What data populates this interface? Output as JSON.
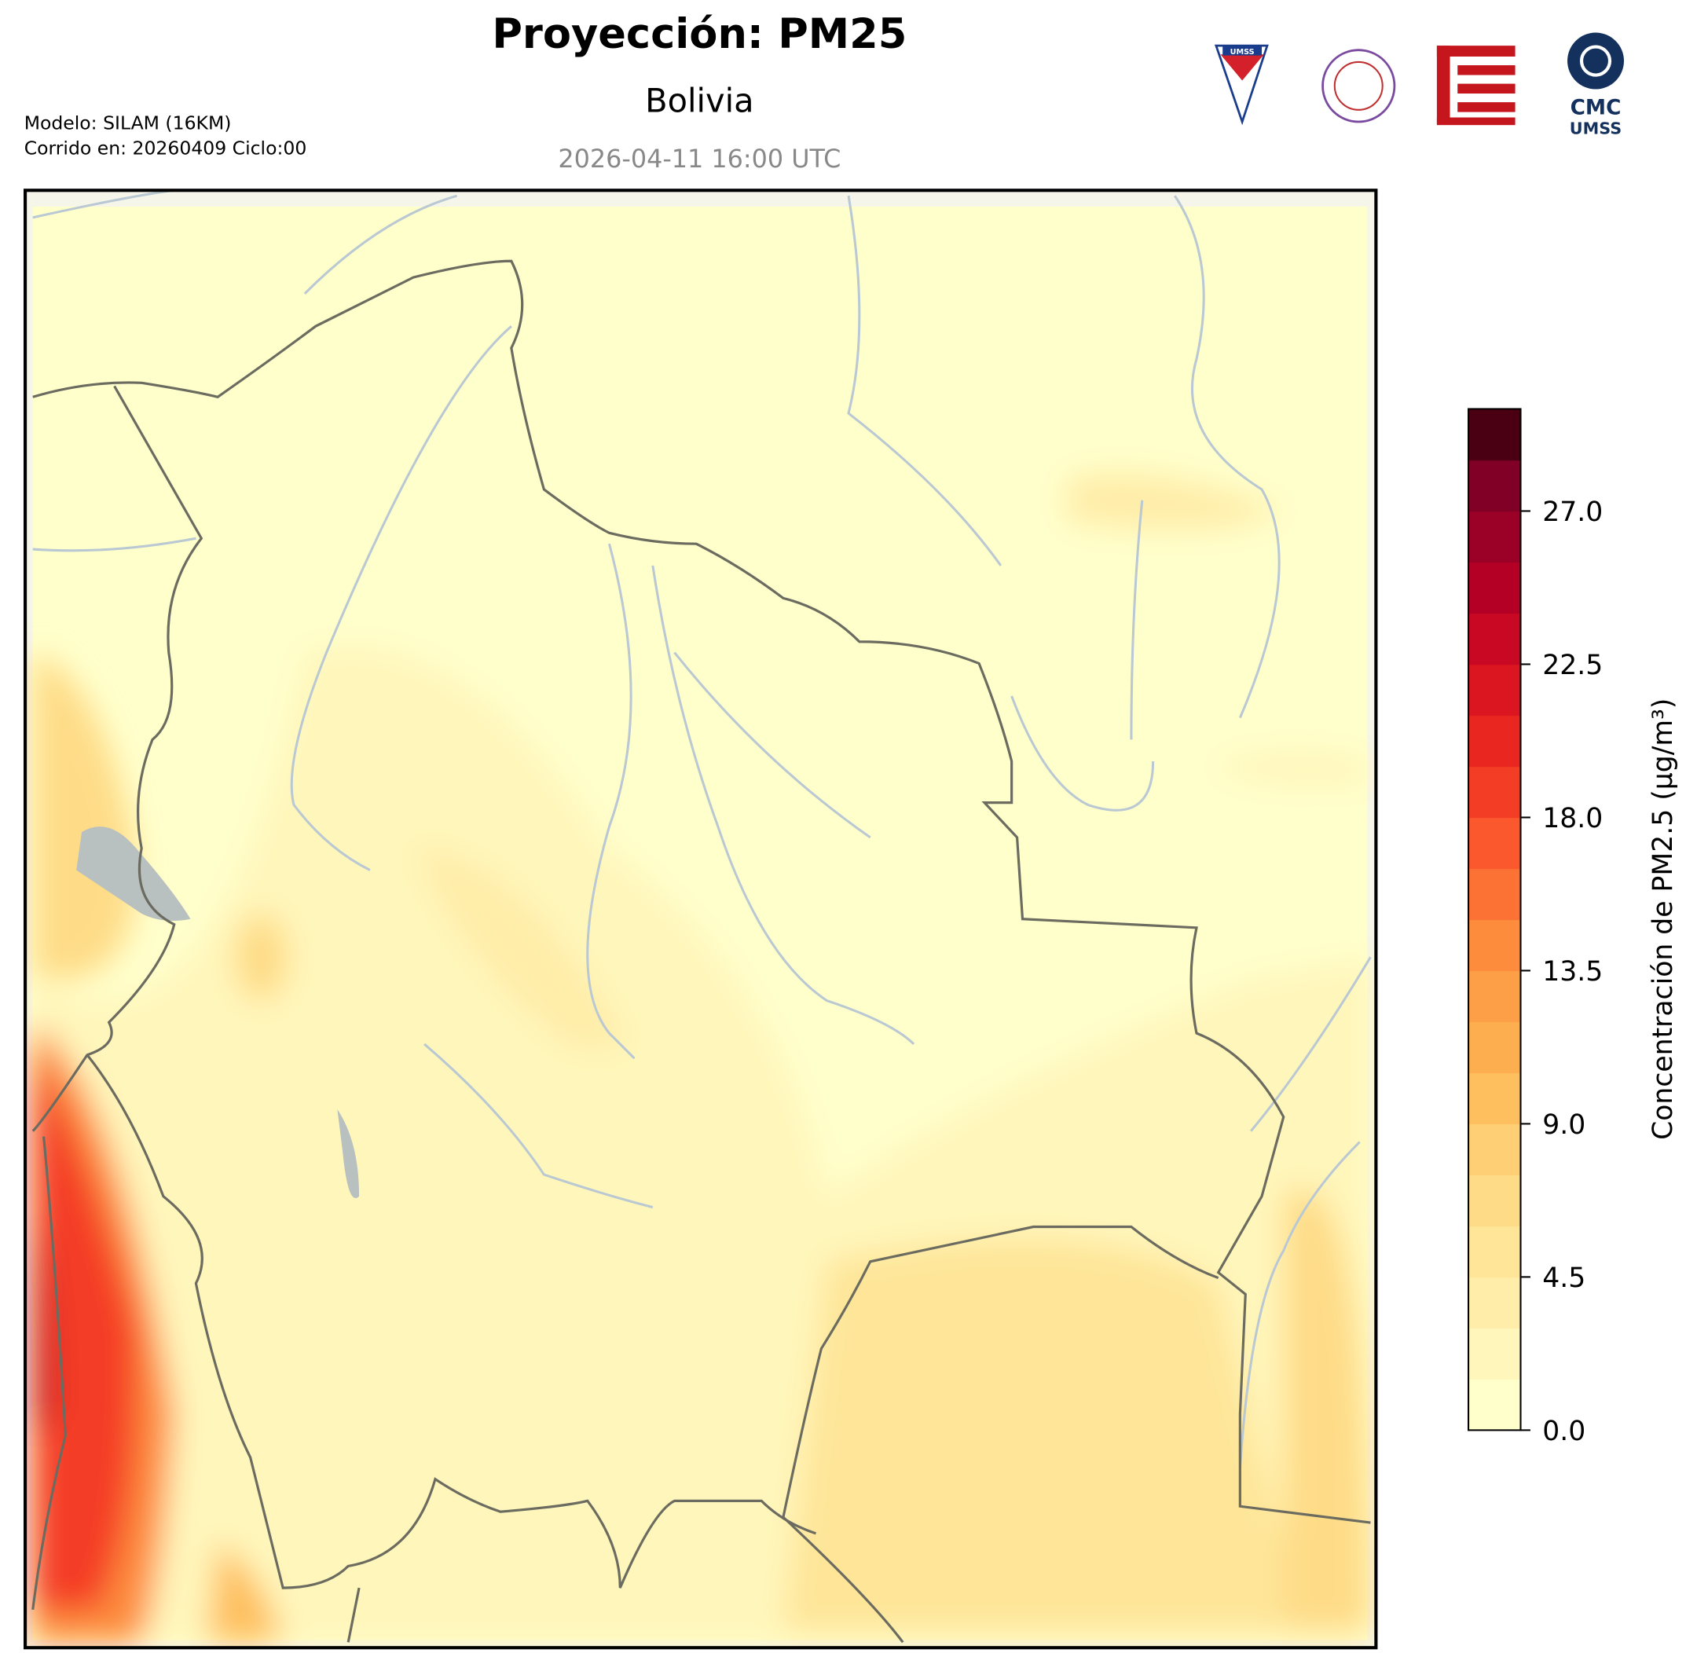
{
  "header": {
    "title": "Proyección: PM25",
    "subtitle": "Bolivia",
    "datetime": "2026-04-11 16:00 UTC",
    "model": "Modelo: SILAM (16KM)",
    "run": "Corrido en: 20260409 Ciclo:00"
  },
  "logos": {
    "umss": "UMSS",
    "cmc": "CMC",
    "cmc_sub": "UMSS"
  },
  "colorbar": {
    "label": "Concentración de PM2.5 (μg/m³)",
    "lim": [
      0,
      30
    ],
    "ticks": [
      {
        "value": 0,
        "label": "0.0"
      },
      {
        "value": 4.5,
        "label": "4.5"
      },
      {
        "value": 9,
        "label": "9.0"
      },
      {
        "value": 13.5,
        "label": "13.5"
      },
      {
        "value": 18,
        "label": "18.0"
      },
      {
        "value": 22.5,
        "label": "22.5"
      },
      {
        "value": 27,
        "label": "27.0"
      }
    ],
    "colors": [
      "#ffffcc",
      "#fff6bb",
      "#ffeda9",
      "#fee598",
      "#fedc87",
      "#fecf75",
      "#febf5f",
      "#fdae4f",
      "#fd9f46",
      "#fd8c3c",
      "#fc7235",
      "#fc582d",
      "#f43d25",
      "#e9261f",
      "#dc1620",
      "#c90823",
      "#b50026",
      "#9b0026",
      "#800026",
      "#4a0012"
    ]
  }
}
